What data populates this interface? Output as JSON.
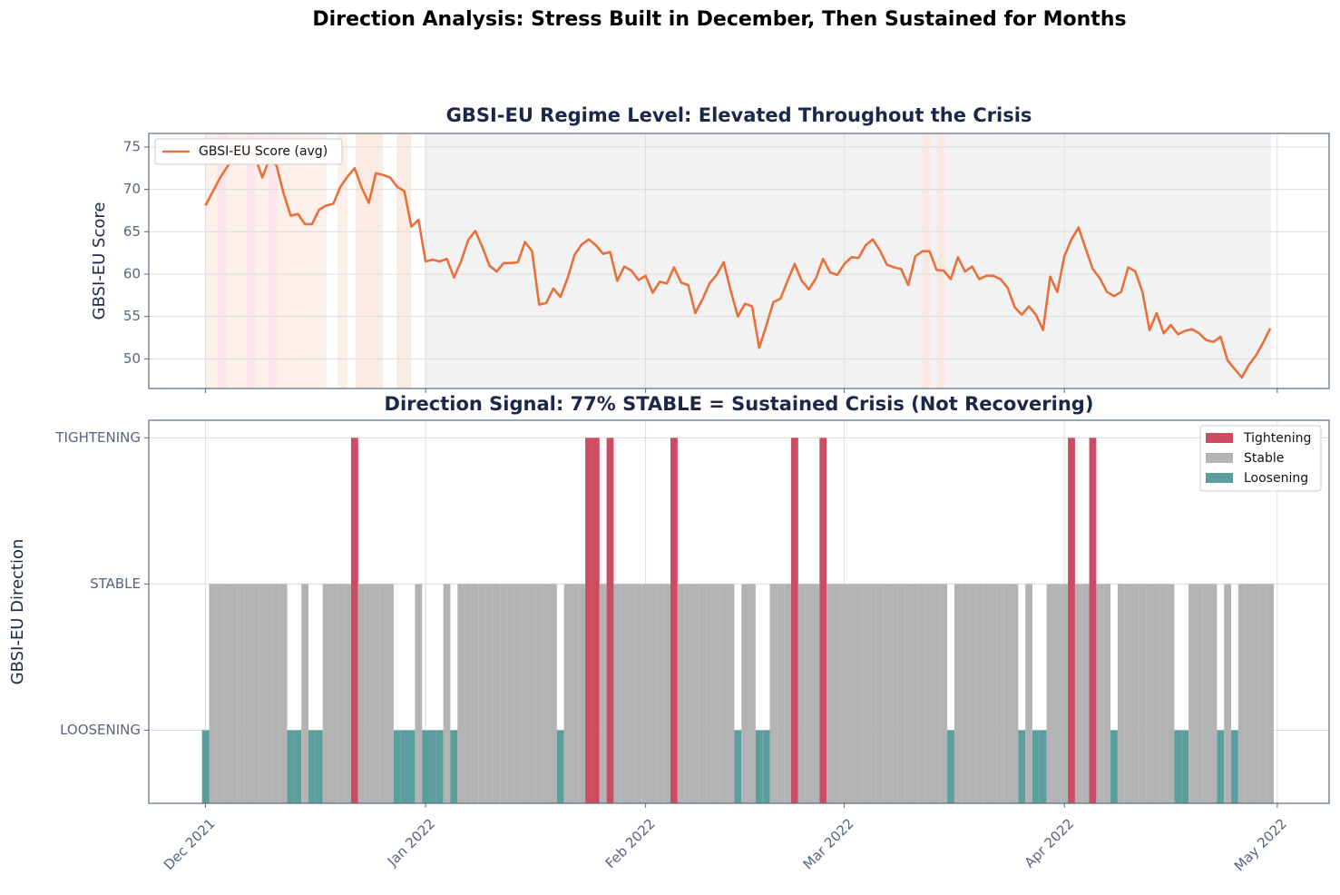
{
  "title": "Direction Analysis: Stress Built in December, Then Sustained for Months",
  "chart_data": [
    {
      "type": "line",
      "title": "GBSI-EU Regime Level: Elevated Throughout the Crisis",
      "y_label": "GBSI-EU Score",
      "series": [
        {
          "name": "GBSI-EU Score (avg)",
          "color": "#e8703a",
          "values": [
            68.1,
            69.7,
            71.3,
            72.6,
            73.8,
            75.3,
            74.8,
            73.8,
            71.4,
            73.6,
            72.8,
            69.5,
            66.9,
            67.1,
            65.9,
            65.9,
            67.6,
            68.1,
            68.3,
            70.3,
            71.5,
            72.5,
            70.2,
            68.4,
            71.9,
            71.7,
            71.4,
            70.3,
            69.8,
            65.6,
            66.4,
            61.5,
            61.7,
            61.5,
            61.8,
            59.6,
            61.5,
            64.0,
            65.1,
            63.2,
            61.0,
            60.3,
            61.3,
            61.3,
            61.4,
            63.8,
            62.7,
            56.4,
            56.6,
            58.3,
            57.3,
            59.5,
            62.3,
            63.5,
            64.1,
            63.4,
            62.4,
            62.6,
            59.2,
            60.9,
            60.4,
            59.3,
            59.8,
            57.8,
            59.1,
            58.9,
            60.8,
            59.0,
            58.7,
            55.4,
            57.0,
            58.9,
            59.9,
            61.4,
            58.0,
            55.0,
            56.5,
            56.2,
            51.3,
            53.9,
            56.7,
            57.1,
            59.2,
            61.2,
            59.2,
            58.2,
            59.5,
            61.8,
            60.2,
            59.9,
            61.2,
            62.0,
            61.9,
            63.4,
            64.1,
            62.8,
            61.1,
            60.8,
            60.6,
            58.7,
            62.1,
            62.7,
            62.7,
            60.5,
            60.4,
            59.4,
            62.0,
            60.3,
            60.9,
            59.4,
            59.8,
            59.8,
            59.4,
            58.4,
            56.1,
            55.2,
            56.2,
            55.2,
            53.4,
            59.7,
            57.9,
            62.1,
            64.1,
            65.5,
            63.0,
            60.6,
            59.5,
            57.9,
            57.4,
            57.9,
            60.8,
            60.3,
            57.9,
            53.4,
            55.4,
            53.0,
            54.0,
            52.9,
            53.3,
            53.5,
            53.0,
            52.2,
            52.0,
            52.6,
            49.8,
            48.8,
            47.8,
            49.3,
            50.4,
            51.9,
            53.6
          ]
        }
      ],
      "xlim": [
        -8,
        158.3
      ],
      "xticks": [
        0,
        31,
        62,
        90,
        121,
        151
      ],
      "ylim": [
        46.5,
        76.6
      ],
      "yticks": [
        50,
        55,
        60,
        65,
        70,
        75
      ],
      "grid": true,
      "legend": "upper left"
    },
    {
      "type": "bar",
      "title": "Direction Signal: 77% STABLE = Sustained Crisis (Not Recovering)",
      "y_label": "GBSI-EU Direction",
      "values": [
        -1,
        0,
        0,
        0,
        0,
        0,
        0,
        0,
        0,
        0,
        0,
        0,
        -1,
        -1,
        0,
        -1,
        -1,
        0,
        0,
        0,
        0,
        1,
        0,
        0,
        0,
        0,
        0,
        -1,
        -1,
        -1,
        0,
        -1,
        -1,
        -1,
        0,
        -1,
        0,
        0,
        0,
        0,
        0,
        0,
        0,
        0,
        0,
        0,
        0,
        0,
        0,
        0,
        -1,
        0,
        0,
        0,
        1,
        1,
        0,
        1,
        0,
        0,
        0,
        0,
        0,
        0,
        0,
        0,
        1,
        0,
        0,
        0,
        0,
        0,
        0,
        0,
        0,
        -1,
        0,
        0,
        -1,
        -1,
        0,
        0,
        0,
        1,
        0,
        0,
        0,
        1,
        0,
        0,
        0,
        0,
        0,
        0,
        0,
        0,
        0,
        0,
        0,
        0,
        0,
        0,
        0,
        0,
        0,
        -1,
        0,
        0,
        0,
        0,
        0,
        0,
        0,
        0,
        0,
        -1,
        0,
        -1,
        -1,
        0,
        0,
        0,
        1,
        0,
        0,
        1,
        0,
        0,
        -1,
        0,
        0,
        0,
        0,
        0,
        0,
        0,
        0,
        -1,
        -1,
        0,
        0,
        0,
        0,
        -1,
        0,
        -1,
        0,
        0,
        0,
        0,
        0
      ],
      "legend_entries": [
        {
          "name": "Tightening",
          "color": "#cc4c61",
          "value": 1
        },
        {
          "name": "Stable",
          "color": "#b3b3b3",
          "value": 0
        },
        {
          "name": "Loosening",
          "color": "#5a9f9d",
          "value": -1
        }
      ],
      "xlim": [
        -8,
        158.3
      ],
      "xticks": [
        {
          "value": 0,
          "label": "Dec 2021"
        },
        {
          "value": 31,
          "label": "Jan 2022"
        },
        {
          "value": 62,
          "label": "Feb 2022"
        },
        {
          "value": 90,
          "label": "Mar 2022"
        },
        {
          "value": 121,
          "label": "Apr 2022"
        },
        {
          "value": 151,
          "label": "May 2022"
        }
      ],
      "ylim": [
        -1.5,
        1.12
      ],
      "yticks": [
        {
          "value": -1,
          "label": "LOOSENING"
        },
        {
          "value": 0,
          "label": "STABLE"
        },
        {
          "value": 1,
          "label": "TIGHTENING"
        }
      ],
      "grid": true,
      "legend": "upper right"
    }
  ]
}
